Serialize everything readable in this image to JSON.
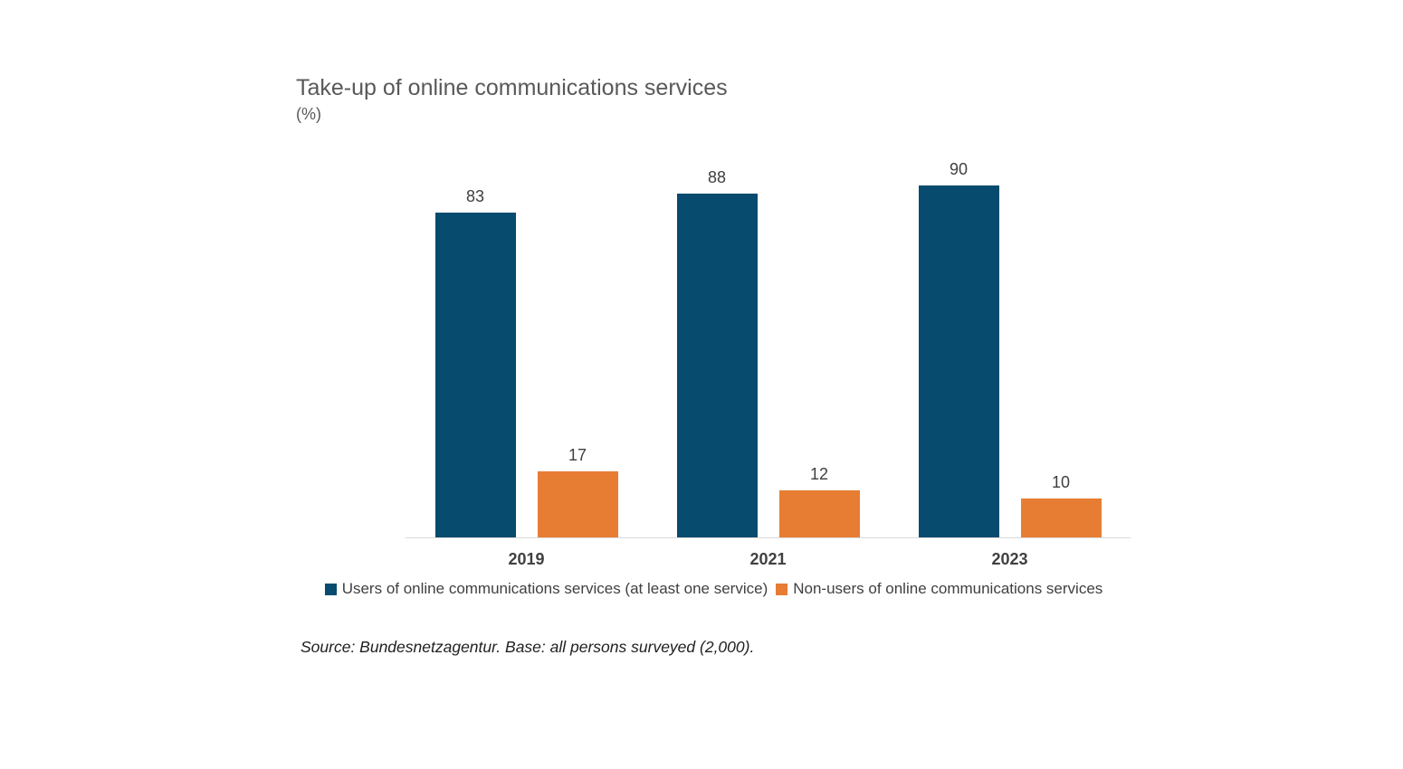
{
  "header": {
    "title": "Take-up of online communications services",
    "unit": "(%)"
  },
  "footer": {
    "source": "Source: Bundesnetzagentur. Base: all persons surveyed (2,000)."
  },
  "chart_data": {
    "type": "bar",
    "title": "Take-up of online communications services",
    "subtitle_unit": "(%)",
    "categories": [
      "2019",
      "2021",
      "2023"
    ],
    "series": [
      {
        "name": "Users of online communications services (at least one service)",
        "color": "#074b6e",
        "values": [
          83,
          88,
          90
        ]
      },
      {
        "name": "Non-users of online communications services",
        "color": "#e77d33",
        "values": [
          17,
          12,
          10
        ]
      }
    ],
    "ylim": [
      0,
      100
    ],
    "grid": false,
    "value_labels": true,
    "legend_position": "bottom",
    "colors": {
      "axis_line": "#d9d9d9",
      "title_text": "#595959",
      "value_label_text": "#3f3f3f",
      "category_label_text": "#404040"
    },
    "source_note": "Source: Bundesnetzagentur. Base: all persons surveyed (2,000)."
  }
}
